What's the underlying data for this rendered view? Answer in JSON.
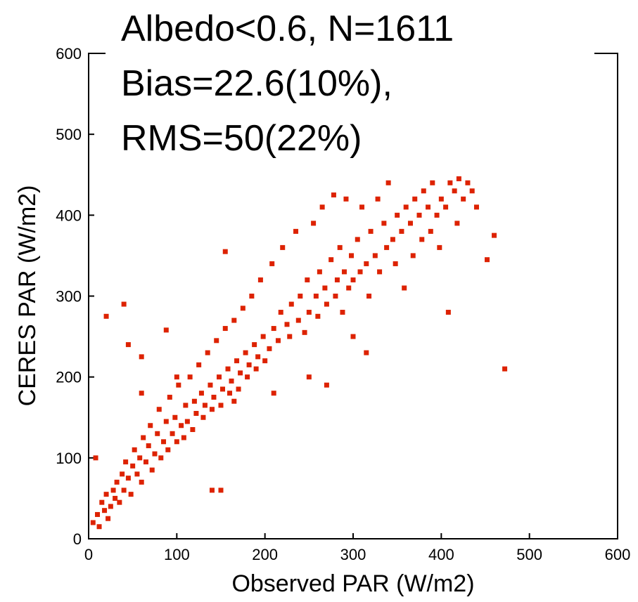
{
  "chart_data": {
    "type": "scatter",
    "title": [
      "Albedo<0.6, N=1611",
      "Bias=22.6(10%),",
      "RMS=50(22%)"
    ],
    "xlabel": "Observed PAR (W/m2)",
    "ylabel": "CERES PAR (W/m2)",
    "xlim": [
      0,
      600
    ],
    "ylim": [
      0,
      600
    ],
    "xticks": [
      0,
      100,
      200,
      300,
      400,
      500,
      600
    ],
    "yticks": [
      0,
      100,
      200,
      300,
      400,
      500,
      600
    ],
    "color": "#dd2200",
    "x": [
      5,
      10,
      12,
      15,
      18,
      20,
      22,
      25,
      28,
      30,
      32,
      35,
      38,
      40,
      42,
      45,
      48,
      50,
      52,
      55,
      58,
      60,
      62,
      65,
      68,
      70,
      72,
      75,
      78,
      80,
      82,
      85,
      88,
      90,
      92,
      95,
      98,
      100,
      102,
      105,
      108,
      110,
      112,
      115,
      118,
      120,
      122,
      125,
      128,
      130,
      132,
      135,
      138,
      140,
      142,
      145,
      148,
      150,
      152,
      155,
      158,
      160,
      162,
      165,
      168,
      170,
      172,
      175,
      178,
      180,
      182,
      185,
      188,
      190,
      192,
      195,
      198,
      200,
      205,
      208,
      210,
      215,
      218,
      220,
      225,
      228,
      230,
      235,
      238,
      240,
      245,
      248,
      250,
      255,
      258,
      260,
      262,
      265,
      268,
      270,
      275,
      278,
      280,
      282,
      285,
      288,
      290,
      292,
      295,
      298,
      300,
      305,
      308,
      310,
      315,
      318,
      320,
      325,
      328,
      330,
      335,
      338,
      340,
      345,
      348,
      350,
      355,
      358,
      360,
      365,
      368,
      370,
      375,
      378,
      380,
      385,
      388,
      390,
      395,
      398,
      400,
      405,
      408,
      410,
      415,
      418,
      420,
      425,
      430,
      435,
      440,
      452,
      460,
      472,
      20,
      40,
      88,
      155,
      45,
      60,
      165,
      210,
      270,
      300,
      315,
      250,
      150,
      140,
      8,
      100,
      60
    ],
    "y": [
      20,
      30,
      15,
      45,
      35,
      55,
      25,
      40,
      60,
      50,
      70,
      45,
      80,
      60,
      95,
      75,
      55,
      90,
      110,
      80,
      100,
      70,
      125,
      95,
      115,
      140,
      85,
      105,
      130,
      160,
      100,
      120,
      145,
      110,
      175,
      130,
      150,
      120,
      190,
      140,
      125,
      165,
      145,
      200,
      135,
      170,
      155,
      215,
      180,
      150,
      165,
      230,
      190,
      160,
      175,
      245,
      200,
      165,
      185,
      260,
      210,
      180,
      195,
      270,
      220,
      185,
      205,
      285,
      230,
      200,
      215,
      300,
      240,
      210,
      225,
      320,
      250,
      220,
      235,
      340,
      260,
      245,
      280,
      360,
      265,
      250,
      290,
      380,
      270,
      300,
      255,
      320,
      280,
      390,
      300,
      275,
      330,
      410,
      310,
      290,
      345,
      425,
      300,
      320,
      360,
      280,
      330,
      420,
      310,
      350,
      320,
      370,
      330,
      410,
      340,
      300,
      380,
      350,
      420,
      330,
      390,
      360,
      440,
      370,
      340,
      400,
      380,
      310,
      410,
      390,
      350,
      420,
      400,
      370,
      430,
      410,
      380,
      440,
      400,
      360,
      420,
      410,
      280,
      440,
      430,
      390,
      445,
      420,
      440,
      430,
      410,
      345,
      375,
      210,
      275,
      290,
      258,
      355,
      240,
      225,
      170,
      180,
      190,
      250,
      230,
      200,
      60,
      60,
      100,
      200,
      180
    ]
  }
}
